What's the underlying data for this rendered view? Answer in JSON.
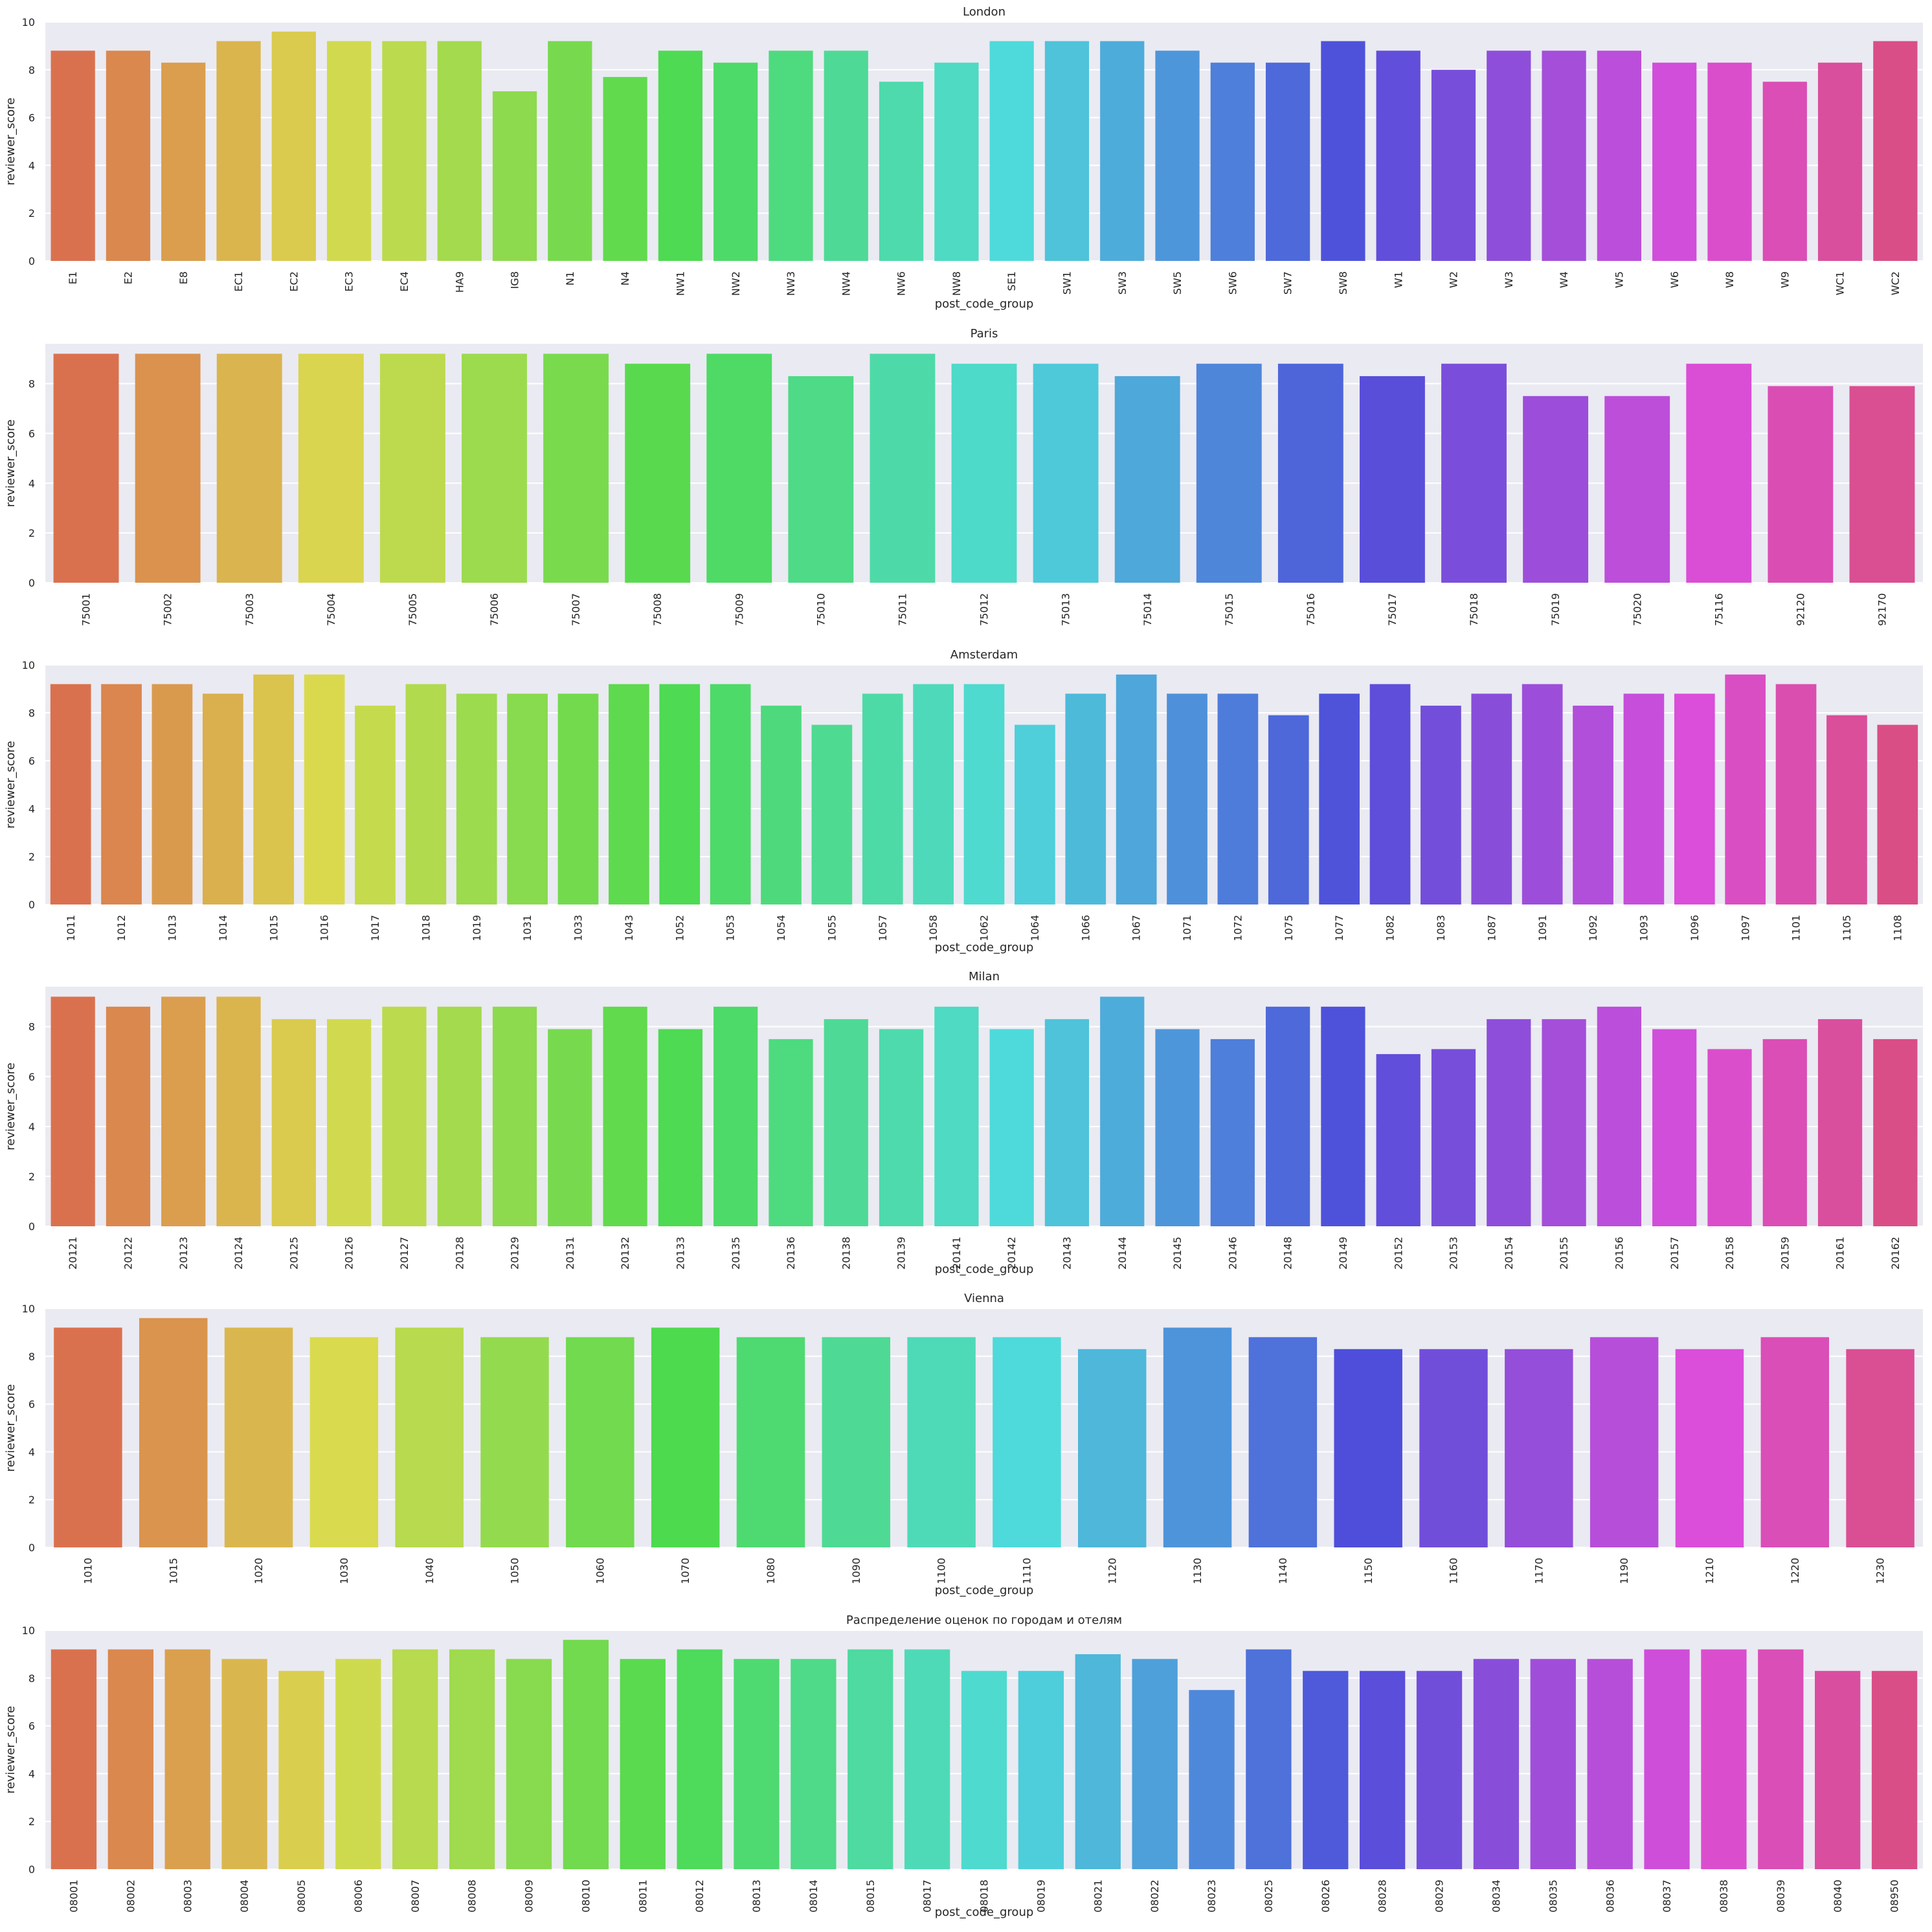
{
  "chart_data": [
    {
      "type": "bar",
      "title": "London",
      "xlabel": "post_code_group",
      "ylabel": "reviewer_score",
      "ylim": [
        0,
        10
      ],
      "yticks": [
        0,
        2,
        4,
        6,
        8,
        10
      ],
      "grid": true,
      "categories": [
        "E1",
        "E2",
        "E8",
        "EC1",
        "EC2",
        "EC3",
        "EC4",
        "HA9",
        "IG8",
        "N1",
        "N4",
        "NW1",
        "NW2",
        "NW3",
        "NW4",
        "NW6",
        "NW8",
        "SE1",
        "SW1",
        "SW3",
        "SW5",
        "SW6",
        "SW7",
        "SW8",
        "W1",
        "W2",
        "W3",
        "W4",
        "W5",
        "W6",
        "W8",
        "W9",
        "WC1",
        "WC2"
      ],
      "values": [
        8.8,
        8.8,
        8.3,
        9.2,
        9.6,
        9.2,
        9.2,
        9.2,
        7.1,
        9.2,
        7.7,
        8.8,
        8.3,
        8.8,
        8.8,
        7.5,
        8.3,
        9.2,
        9.2,
        9.2,
        8.8,
        8.3,
        8.3,
        9.2,
        8.8,
        8.0,
        8.8,
        8.8,
        8.8,
        8.3,
        8.3,
        7.5,
        8.3,
        9.2
      ]
    },
    {
      "type": "bar",
      "title": "Paris",
      "xlabel": "",
      "ylabel": "reviewer_score",
      "ylim": [
        0,
        9.6
      ],
      "yticks": [
        0,
        2,
        4,
        6,
        8
      ],
      "grid": true,
      "categories": [
        "75001",
        "75002",
        "75003",
        "75004",
        "75005",
        "75006",
        "75007",
        "75008",
        "75009",
        "75010",
        "75011",
        "75012",
        "75013",
        "75014",
        "75015",
        "75016",
        "75017",
        "75018",
        "75019",
        "75020",
        "75116",
        "92120",
        "92170"
      ],
      "values": [
        9.2,
        9.2,
        9.2,
        9.2,
        9.2,
        9.2,
        9.2,
        8.8,
        9.2,
        8.3,
        9.2,
        8.8,
        8.8,
        8.3,
        8.8,
        8.8,
        8.3,
        8.8,
        7.5,
        7.5,
        8.8,
        7.9,
        7.9
      ]
    },
    {
      "type": "bar",
      "title": "Amsterdam",
      "xlabel": "post_code_group",
      "ylabel": "reviewer_score",
      "ylim": [
        0,
        10
      ],
      "yticks": [
        0,
        2,
        4,
        6,
        8,
        10
      ],
      "grid": true,
      "categories": [
        "1011",
        "1012",
        "1013",
        "1014",
        "1015",
        "1016",
        "1017",
        "1018",
        "1019",
        "1031",
        "1033",
        "1043",
        "1052",
        "1053",
        "1054",
        "1055",
        "1057",
        "1058",
        "1062",
        "1064",
        "1066",
        "1067",
        "1071",
        "1072",
        "1075",
        "1077",
        "1082",
        "1083",
        "1087",
        "1091",
        "1092",
        "1093",
        "1096",
        "1097",
        "1101",
        "1105",
        "1108"
      ],
      "values": [
        9.2,
        9.2,
        9.2,
        8.8,
        9.6,
        9.6,
        8.3,
        9.2,
        8.8,
        8.8,
        8.8,
        9.2,
        9.2,
        9.2,
        8.3,
        7.5,
        8.8,
        9.2,
        9.2,
        7.5,
        8.8,
        9.6,
        8.8,
        8.8,
        7.9,
        8.8,
        9.2,
        8.3,
        8.8,
        9.2,
        8.3,
        8.8,
        8.8,
        9.6,
        9.2,
        7.9,
        7.5
      ]
    },
    {
      "type": "bar",
      "title": "Milan",
      "xlabel": "post_code_group",
      "ylabel": "reviewer_score",
      "ylim": [
        0,
        9.6
      ],
      "yticks": [
        0,
        2,
        4,
        6,
        8
      ],
      "grid": true,
      "categories": [
        "20121",
        "20122",
        "20123",
        "20124",
        "20125",
        "20126",
        "20127",
        "20128",
        "20129",
        "20131",
        "20132",
        "20133",
        "20135",
        "20136",
        "20138",
        "20139",
        "20141",
        "20142",
        "20143",
        "20144",
        "20145",
        "20146",
        "20148",
        "20149",
        "20152",
        "20153",
        "20154",
        "20155",
        "20156",
        "20157",
        "20158",
        "20159",
        "20161",
        "20162"
      ],
      "values": [
        9.2,
        8.8,
        9.2,
        9.2,
        8.3,
        8.3,
        8.8,
        8.8,
        8.8,
        7.9,
        8.8,
        7.9,
        8.8,
        7.5,
        8.3,
        7.9,
        8.8,
        7.9,
        8.3,
        9.2,
        7.9,
        7.5,
        8.8,
        8.8,
        6.9,
        7.1,
        8.3,
        8.3,
        8.8,
        7.9,
        7.1,
        7.5,
        8.3,
        7.5
      ]
    },
    {
      "type": "bar",
      "title": "Vienna",
      "xlabel": "post_code_group",
      "ylabel": "reviewer_score",
      "ylim": [
        0,
        10
      ],
      "yticks": [
        0,
        2,
        4,
        6,
        8,
        10
      ],
      "grid": true,
      "categories": [
        "1010",
        "1015",
        "1020",
        "1030",
        "1040",
        "1050",
        "1060",
        "1070",
        "1080",
        "1090",
        "1100",
        "1110",
        "1120",
        "1130",
        "1140",
        "1150",
        "1160",
        "1170",
        "1190",
        "1210",
        "1220",
        "1230"
      ],
      "values": [
        9.2,
        9.6,
        9.2,
        8.8,
        9.2,
        8.8,
        8.8,
        9.2,
        8.8,
        8.8,
        8.8,
        8.8,
        8.3,
        9.2,
        8.8,
        8.3,
        8.3,
        8.3,
        8.8,
        8.3,
        8.8,
        8.3
      ]
    },
    {
      "type": "bar",
      "title": "Распределение оценок по городам и отелям",
      "xlabel": "post_code_group",
      "ylabel": "reviewer_score",
      "ylim": [
        0,
        10
      ],
      "yticks": [
        0,
        2,
        4,
        6,
        8,
        10
      ],
      "grid": true,
      "categories": [
        "08001",
        "08002",
        "08003",
        "08004",
        "08005",
        "08006",
        "08007",
        "08008",
        "08009",
        "08010",
        "08011",
        "08012",
        "08013",
        "08014",
        "08015",
        "08017",
        "08018",
        "08019",
        "08021",
        "08022",
        "08023",
        "08025",
        "08026",
        "08028",
        "08029",
        "08034",
        "08035",
        "08036",
        "08037",
        "08038",
        "08039",
        "08040",
        "08950"
      ],
      "values": [
        9.2,
        9.2,
        9.2,
        8.8,
        8.3,
        8.8,
        9.2,
        9.2,
        8.8,
        9.6,
        8.8,
        9.2,
        8.8,
        8.8,
        9.2,
        9.2,
        8.3,
        8.3,
        9.0,
        8.8,
        7.5,
        9.2,
        8.3,
        8.3,
        8.3,
        8.8,
        8.8,
        8.8,
        9.2,
        9.2,
        9.2,
        8.3,
        8.3
      ]
    }
  ]
}
